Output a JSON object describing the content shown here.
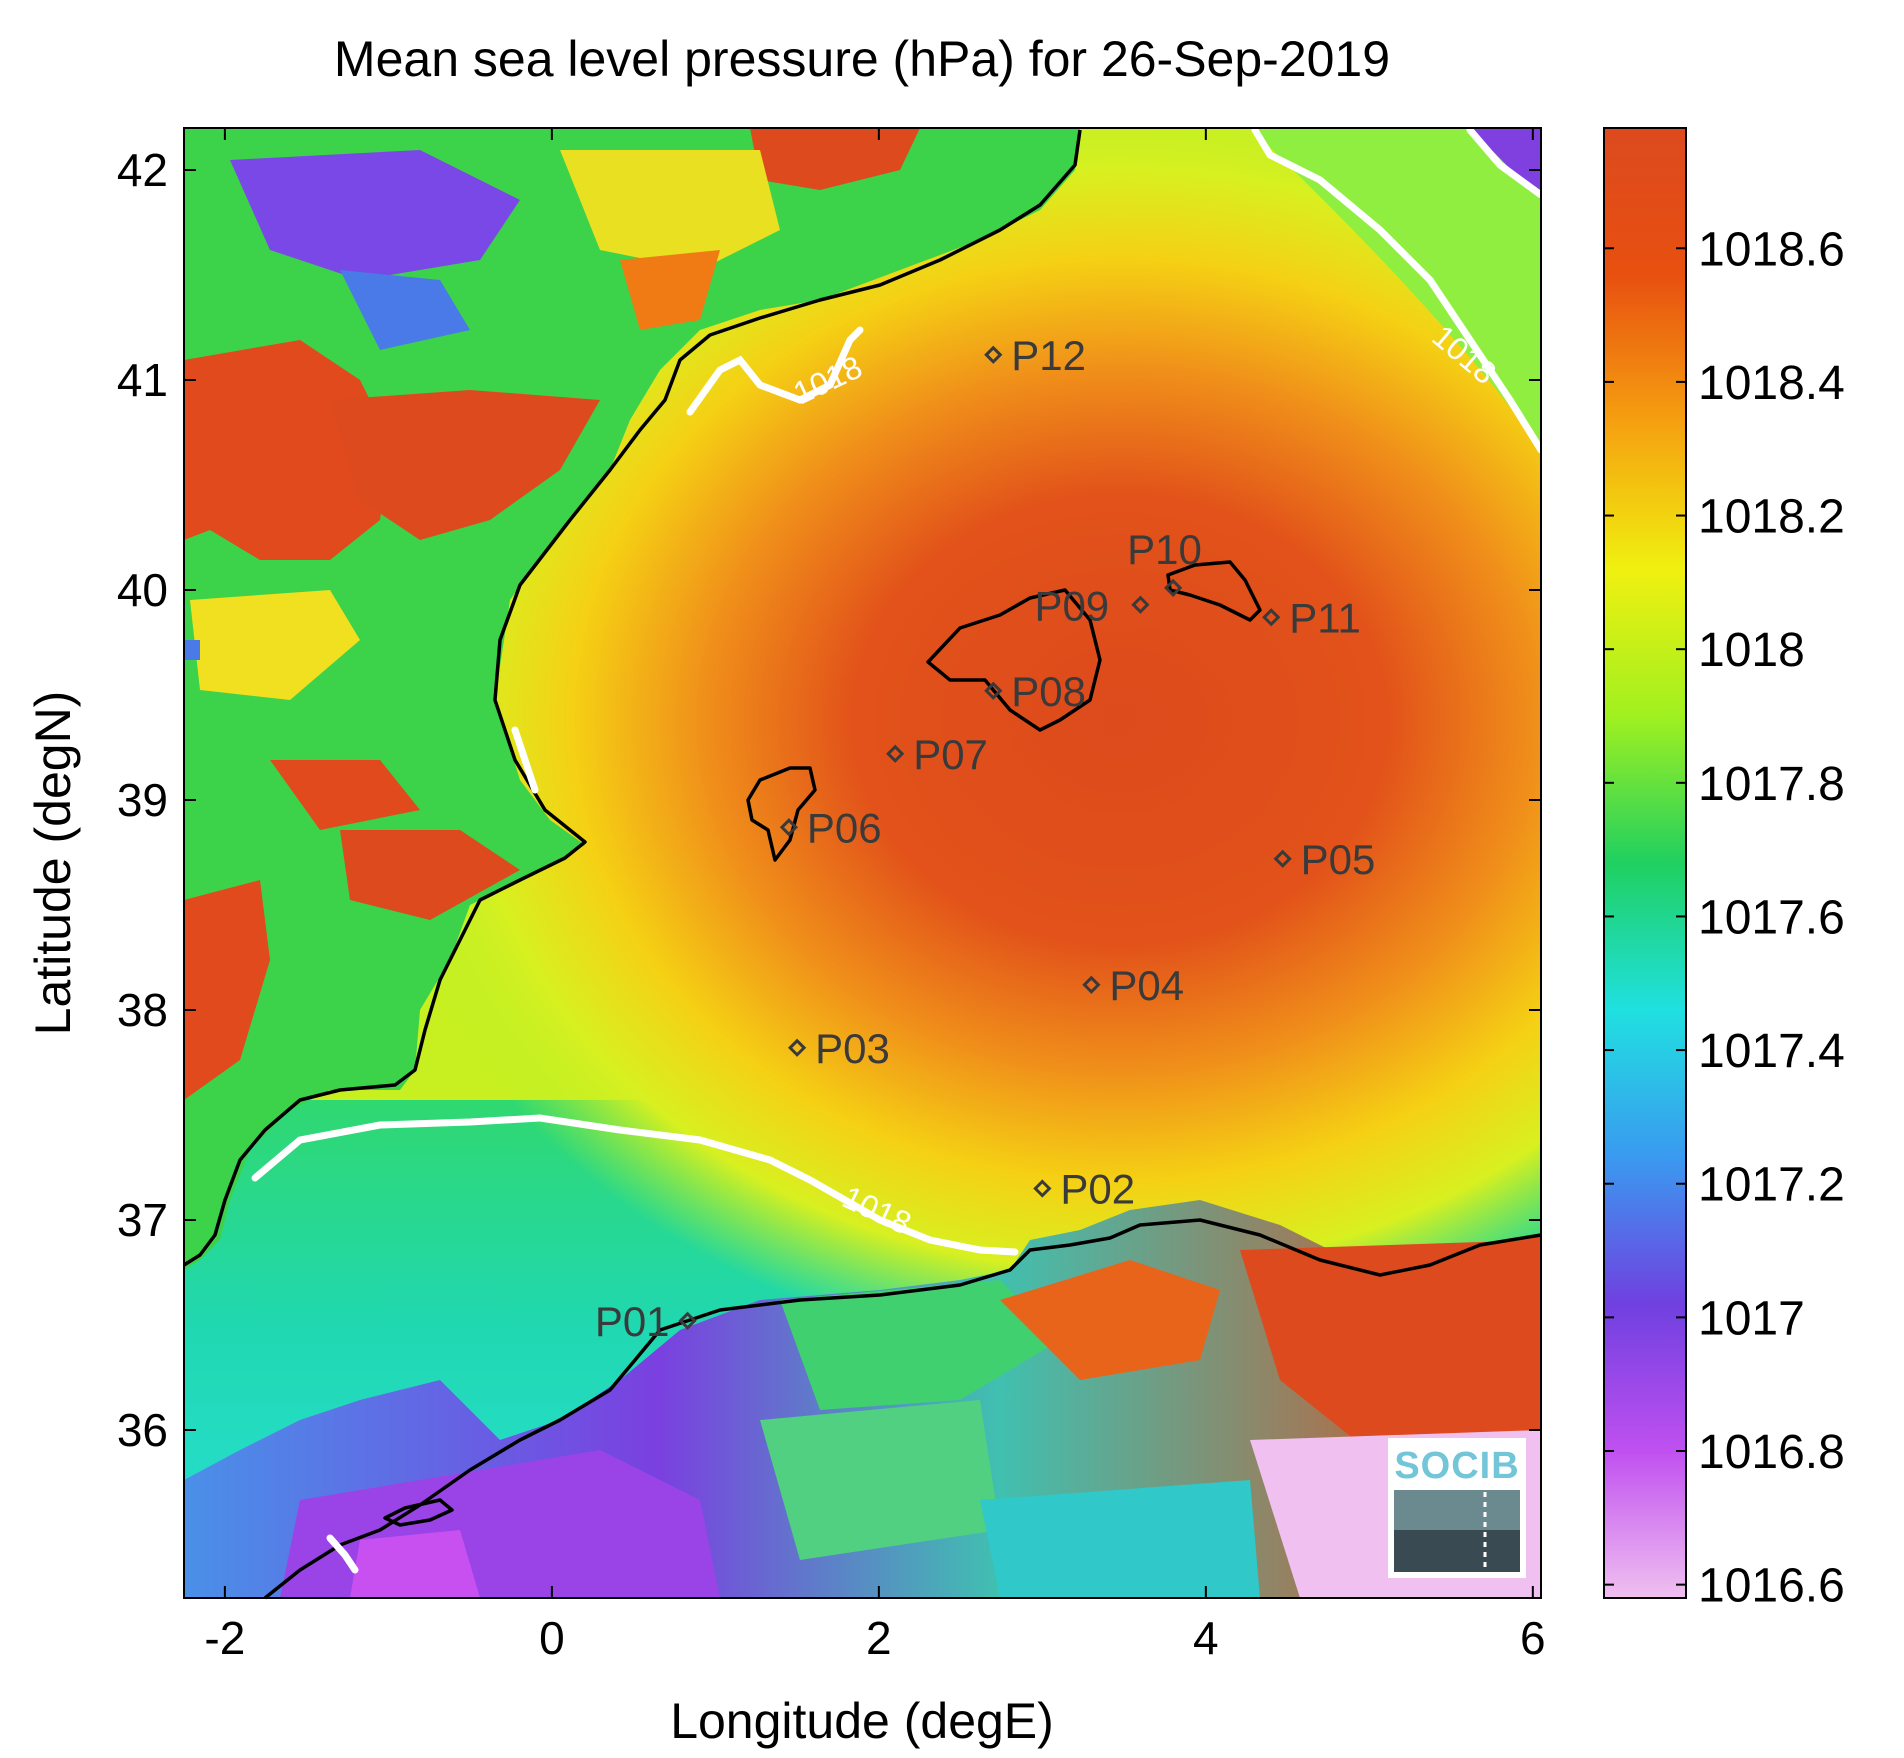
{
  "title": "Mean sea level pressure (hPa) for 26-Sep-2019",
  "x_axis": {
    "label": "Longitude (degE)",
    "range": [
      -2.25,
      6.05
    ],
    "ticks": [
      -2,
      0,
      2,
      4,
      6
    ]
  },
  "y_axis": {
    "label": "Latitude (degN)",
    "range": [
      35.2,
      42.2
    ],
    "ticks": [
      36,
      37,
      38,
      39,
      40,
      41,
      42
    ]
  },
  "colorbar": {
    "range": [
      1016.58,
      1018.78
    ],
    "ticks": [
      1016.6,
      1016.8,
      1017,
      1017.2,
      1017.4,
      1017.6,
      1017.8,
      1018,
      1018.2,
      1018.4,
      1018.6
    ],
    "tick_labels": [
      "1016.6",
      "1016.8",
      "1017",
      "1017.2",
      "1017.4",
      "1017.6",
      "1017.8",
      "1018",
      "1018.2",
      "1018.4",
      "1018.6"
    ],
    "colors": [
      "#f0c0f0",
      "#c050f0",
      "#7040e0",
      "#3a9af0",
      "#20e0e0",
      "#20d060",
      "#a0f020",
      "#f0f010",
      "#f5a010",
      "#e85010",
      "#dc4a1e"
    ]
  },
  "contour_labels": [
    "1018",
    "1018",
    "1018"
  ],
  "stations": [
    {
      "id": "P01",
      "lon": 0.83,
      "lat": 36.52
    },
    {
      "id": "P02",
      "lon": 3.0,
      "lat": 37.15
    },
    {
      "id": "P03",
      "lon": 1.5,
      "lat": 37.82
    },
    {
      "id": "P04",
      "lon": 3.3,
      "lat": 38.12
    },
    {
      "id": "P05",
      "lon": 4.47,
      "lat": 38.72
    },
    {
      "id": "P06",
      "lon": 1.45,
      "lat": 38.87
    },
    {
      "id": "P07",
      "lon": 2.1,
      "lat": 39.22
    },
    {
      "id": "P08",
      "lon": 2.7,
      "lat": 39.52
    },
    {
      "id": "P09",
      "lon": 3.6,
      "lat": 39.93
    },
    {
      "id": "P10",
      "lon": 3.8,
      "lat": 40.01
    },
    {
      "id": "P11",
      "lon": 4.4,
      "lat": 39.87
    },
    {
      "id": "P12",
      "lon": 2.7,
      "lat": 41.12
    }
  ],
  "logo": {
    "text": "SOCIB"
  }
}
